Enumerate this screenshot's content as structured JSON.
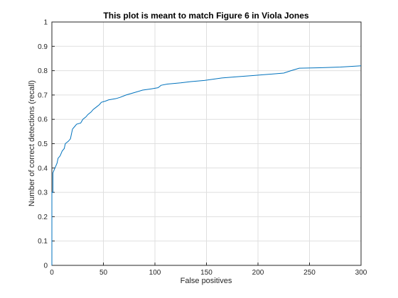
{
  "chart_data": {
    "type": "line",
    "title": "This plot is meant to match Figure 6 in Viola Jones",
    "x_label": "False positives",
    "y_label": "Number of correct detections (recall)",
    "x": [
      0,
      0,
      1,
      1,
      2,
      3,
      5,
      6,
      8,
      10,
      12,
      13,
      16,
      18,
      19,
      20,
      22,
      24,
      28,
      30,
      33,
      35,
      38,
      40,
      43,
      46,
      48,
      52,
      55,
      62,
      66,
      72,
      80,
      88,
      96,
      103,
      106,
      112,
      125,
      135,
      148,
      165,
      180,
      195,
      210,
      225,
      232,
      240,
      260,
      280,
      300
    ],
    "series": [
      {
        "name": "recall",
        "color": "#0072bd",
        "values": [
          0,
          0.3,
          0.3,
          0.38,
          0.39,
          0.4,
          0.42,
          0.44,
          0.45,
          0.47,
          0.48,
          0.5,
          0.51,
          0.52,
          0.54,
          0.56,
          0.57,
          0.58,
          0.585,
          0.6,
          0.61,
          0.62,
          0.63,
          0.64,
          0.65,
          0.66,
          0.67,
          0.675,
          0.68,
          0.685,
          0.69,
          0.7,
          0.71,
          0.72,
          0.725,
          0.73,
          0.74,
          0.745,
          0.75,
          0.755,
          0.76,
          0.77,
          0.775,
          0.78,
          0.785,
          0.79,
          0.8,
          0.81,
          0.812,
          0.815,
          0.82
        ]
      }
    ],
    "xlim": [
      0,
      300
    ],
    "xticks": [
      0,
      50,
      100,
      150,
      200,
      250,
      300
    ],
    "ylim": [
      0,
      1
    ],
    "yticks": [
      0,
      0.1,
      0.2,
      0.3,
      0.4,
      0.5,
      0.6,
      0.7,
      0.8,
      0.9,
      1
    ],
    "grid": true
  }
}
